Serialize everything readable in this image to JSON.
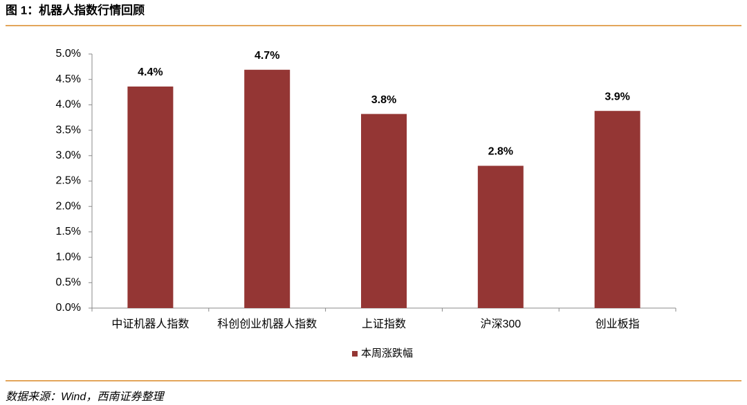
{
  "header": {
    "title": "图 1：机器人指数行情回顾"
  },
  "chart_data": {
    "type": "bar",
    "categories": [
      "中证机器人指数",
      "科创创业机器人指数",
      "上证指数",
      "沪深300",
      "创业板指"
    ],
    "series": [
      {
        "name": "本周涨跌幅",
        "color": "#943634",
        "values": [
          4.36,
          4.69,
          3.82,
          2.8,
          3.88
        ],
        "value_labels": [
          "4.4%",
          "4.7%",
          "3.8%",
          "2.8%",
          "3.9%"
        ]
      }
    ],
    "ylim": [
      0,
      5
    ],
    "yticks": [
      {
        "value": 0,
        "label": "0.0%"
      },
      {
        "value": 0.5,
        "label": "0.5%"
      },
      {
        "value": 1,
        "label": "1.0%"
      },
      {
        "value": 1.5,
        "label": "1.5%"
      },
      {
        "value": 2,
        "label": "2.0%"
      },
      {
        "value": 2.5,
        "label": "2.5%"
      },
      {
        "value": 3,
        "label": "3.0%"
      },
      {
        "value": 3.5,
        "label": "3.5%"
      },
      {
        "value": 4,
        "label": "4.0%"
      },
      {
        "value": 4.5,
        "label": "4.5%"
      },
      {
        "value": 5,
        "label": "5.0%"
      }
    ],
    "legend": "bottom"
  },
  "footer": {
    "source": "数据来源：Wind，西南证券整理"
  }
}
